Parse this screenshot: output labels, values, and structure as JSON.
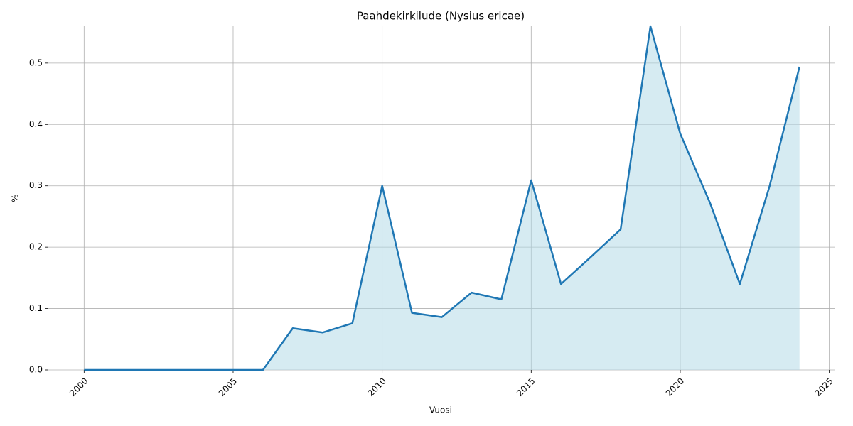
{
  "chart_data": {
    "type": "line",
    "title": "Paahdekirkilude (Nysius ericae)",
    "xlabel": "Vuosi",
    "ylabel": "%",
    "x": [
      2000,
      2001,
      2002,
      2003,
      2004,
      2005,
      2006,
      2007,
      2008,
      2009,
      2010,
      2011,
      2012,
      2013,
      2014,
      2015,
      2016,
      2017,
      2018,
      2019,
      2020,
      2021,
      2022,
      2023,
      2024
    ],
    "series": [
      {
        "name": "Paahdekirkilude",
        "color": "#1f77b4",
        "fill": "#add8e6",
        "values": [
          0,
          0,
          0,
          0,
          0,
          0,
          0,
          0.068,
          0.061,
          0.076,
          0.3,
          0.093,
          0.086,
          0.126,
          0.115,
          0.309,
          0.14,
          0.184,
          0.229,
          0.56,
          0.385,
          0.272,
          0.14,
          0.3,
          0.494
        ]
      }
    ],
    "xlim": [
      1998.8,
      2025.2
    ],
    "ylim": [
      0,
      0.56
    ],
    "xticks": [
      2000,
      2005,
      2010,
      2015,
      2020,
      2025
    ],
    "yticks": [
      {
        "value": 0,
        "label": "0.0"
      },
      {
        "value": 0.1,
        "label": "0.1"
      },
      {
        "value": 0.2,
        "label": "0.2"
      },
      {
        "value": 0.3,
        "label": "0.3"
      },
      {
        "value": 0.4,
        "label": "0.4"
      },
      {
        "value": 0.5,
        "label": "0.5"
      }
    ],
    "grid": true
  }
}
